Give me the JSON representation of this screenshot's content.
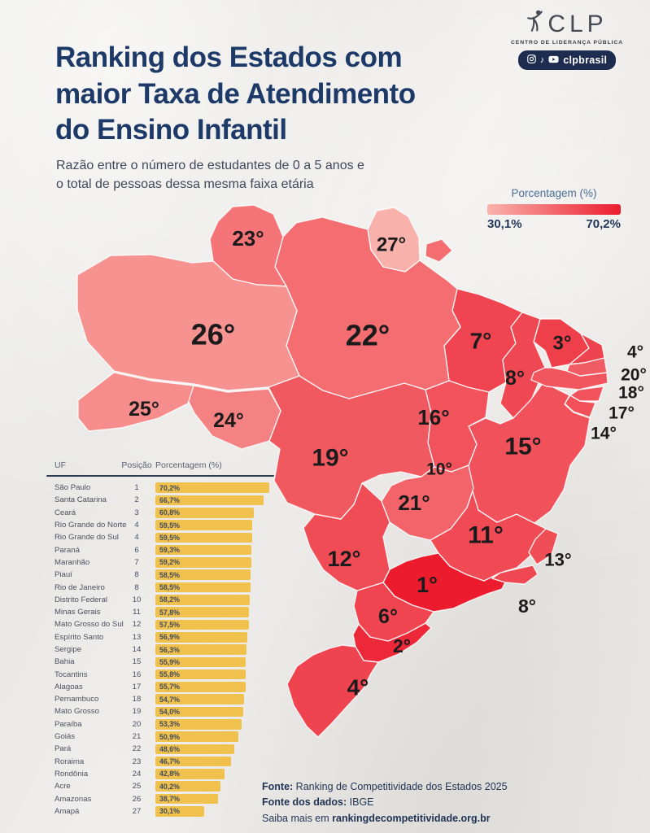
{
  "header": {
    "title": "Ranking dos Estados com\nmaior Taxa de Atendimento\ndo Ensino Infantil",
    "subtitle": "Razão entre o número de estudantes de 0 a 5 anos e\no total de pessoas dessa mesma faixa etária"
  },
  "logo": {
    "name": "CLP",
    "tagline": "CENTRO DE LIDERANÇA PÚBLICA",
    "social_handle": "clpbrasil",
    "pill_color": "#1e2c50",
    "icons": [
      "instagram-icon",
      "tiktok-icon",
      "youtube-icon"
    ]
  },
  "legend": {
    "title": "Porcentagem (%)",
    "min_label": "30,1%",
    "max_label": "70,2%",
    "min_value": 30.1,
    "max_value": 70.2,
    "color_start": "#f9b2ab",
    "color_end": "#ec1c2e"
  },
  "map": {
    "rank_suffix": "°",
    "label_color": "#1b1b1b",
    "border_color": "rgba(255,255,255,0.85)"
  },
  "table": {
    "headers": [
      "UF",
      "Posição",
      "Porcentagem (%)"
    ],
    "bar_color": "#f1c14d",
    "rows": [
      {
        "uf": "São Paulo",
        "pos": "1",
        "pct": "70,2%",
        "value": 70.2
      },
      {
        "uf": "Santa Catarina",
        "pos": "2",
        "pct": "66,7%",
        "value": 66.7
      },
      {
        "uf": "Ceará",
        "pos": "3",
        "pct": "60,8%",
        "value": 60.8
      },
      {
        "uf": "Rio Grande do Norte",
        "pos": "4",
        "pct": "59,5%",
        "value": 59.5
      },
      {
        "uf": "Rio Grande do Sul",
        "pos": "4",
        "pct": "59,5%",
        "value": 59.5
      },
      {
        "uf": "Paraná",
        "pos": "6",
        "pct": "59,3%",
        "value": 59.3
      },
      {
        "uf": "Maranhão",
        "pos": "7",
        "pct": "59,2%",
        "value": 59.2
      },
      {
        "uf": "Piauí",
        "pos": "8",
        "pct": "58,5%",
        "value": 58.5
      },
      {
        "uf": "Rio de Janeiro",
        "pos": "8",
        "pct": "58,5%",
        "value": 58.5
      },
      {
        "uf": "Distrito Federal",
        "pos": "10",
        "pct": "58,2%",
        "value": 58.2
      },
      {
        "uf": "Minas Gerais",
        "pos": "11",
        "pct": "57,8%",
        "value": 57.8
      },
      {
        "uf": "Mato Grosso do Sul",
        "pos": "12",
        "pct": "57,5%",
        "value": 57.5
      },
      {
        "uf": "Espírito Santo",
        "pos": "13",
        "pct": "56,9%",
        "value": 56.9
      },
      {
        "uf": "Sergipe",
        "pos": "14",
        "pct": "56,3%",
        "value": 56.3
      },
      {
        "uf": "Bahia",
        "pos": "15",
        "pct": "55,9%",
        "value": 55.9
      },
      {
        "uf": "Tocantins",
        "pos": "16",
        "pct": "55,8%",
        "value": 55.8
      },
      {
        "uf": "Alagoas",
        "pos": "17",
        "pct": "55,7%",
        "value": 55.7
      },
      {
        "uf": "Pernambuco",
        "pos": "18",
        "pct": "54,7%",
        "value": 54.7
      },
      {
        "uf": "Mato Grosso",
        "pos": "19",
        "pct": "54,0%",
        "value": 54.0
      },
      {
        "uf": "Paraíba",
        "pos": "20",
        "pct": "53,3%",
        "value": 53.3
      },
      {
        "uf": "Goiás",
        "pos": "21",
        "pct": "50,9%",
        "value": 50.9
      },
      {
        "uf": "Pará",
        "pos": "22",
        "pct": "48,6%",
        "value": 48.6
      },
      {
        "uf": "Roraima",
        "pos": "23",
        "pct": "46,7%",
        "value": 46.7
      },
      {
        "uf": "Rondônia",
        "pos": "24",
        "pct": "42,8%",
        "value": 42.8
      },
      {
        "uf": "Acre",
        "pos": "25",
        "pct": "40,2%",
        "value": 40.2
      },
      {
        "uf": "Amazonas",
        "pos": "26",
        "pct": "38,7%",
        "value": 38.7
      },
      {
        "uf": "Amapá",
        "pos": "27",
        "pct": "30,1%",
        "value": 30.1
      }
    ]
  },
  "chart_data": {
    "type": "heatmap",
    "title": "Ranking dos Estados com maior Taxa de Atendimento do Ensino Infantil",
    "subtitle": "Razão entre o número de estudantes de 0 a 5 anos e o total de pessoas dessa mesma faixa etária",
    "unit": "Porcentagem (%)",
    "value_range": [
      30.1,
      70.2
    ],
    "categories": [
      "São Paulo",
      "Santa Catarina",
      "Ceará",
      "Rio Grande do Norte",
      "Rio Grande do Sul",
      "Paraná",
      "Maranhão",
      "Piauí",
      "Rio de Janeiro",
      "Distrito Federal",
      "Minas Gerais",
      "Mato Grosso do Sul",
      "Espírito Santo",
      "Sergipe",
      "Bahia",
      "Tocantins",
      "Alagoas",
      "Pernambuco",
      "Mato Grosso",
      "Paraíba",
      "Goiás",
      "Pará",
      "Roraima",
      "Rondônia",
      "Acre",
      "Amazonas",
      "Amapá"
    ],
    "positions": [
      1,
      2,
      3,
      4,
      4,
      6,
      7,
      8,
      8,
      10,
      11,
      12,
      13,
      14,
      15,
      16,
      17,
      18,
      19,
      20,
      21,
      22,
      23,
      24,
      25,
      26,
      27
    ],
    "values": [
      70.2,
      66.7,
      60.8,
      59.5,
      59.5,
      59.3,
      59.2,
      58.5,
      58.5,
      58.2,
      57.8,
      57.5,
      56.9,
      56.3,
      55.9,
      55.8,
      55.7,
      54.7,
      54.0,
      53.3,
      50.9,
      48.6,
      46.7,
      42.8,
      40.2,
      38.7,
      30.1
    ]
  },
  "footer": {
    "fonte_label": "Fonte:",
    "fonte_value": " Ranking de Competitividade dos Estados 2025",
    "dados_label": "Fonte dos dados:",
    "dados_value": " IBGE",
    "saiba_prefix": "Saiba mais em ",
    "site": "rankingdecompetitividade.org.br"
  }
}
